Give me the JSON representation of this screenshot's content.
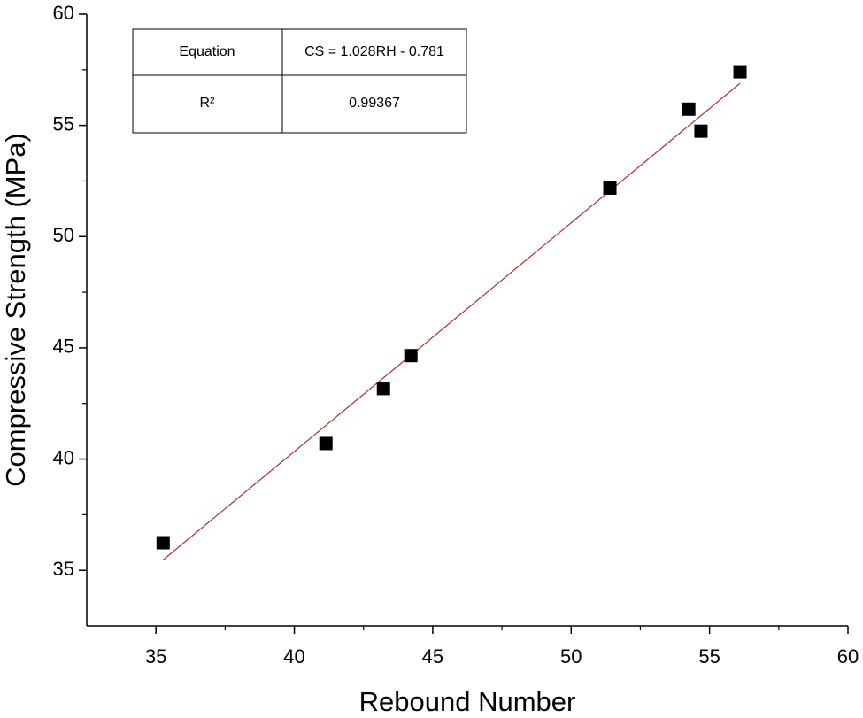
{
  "chart_data": {
    "type": "scatter",
    "x_label": "Rebound Number",
    "y_label": "Compressive Strength (MPa)",
    "x": [
      35.26,
      41.14,
      43.22,
      44.21,
      51.4,
      54.25,
      54.69,
      56.1
    ],
    "series": [
      {
        "color": "#000000",
        "values": [
          36.24,
          40.7,
          43.17,
          44.65,
          52.18,
          55.73,
          54.74,
          57.41
        ]
      }
    ],
    "fit_line": {
      "color": "#b03030",
      "x": [
        35.26,
        56.1
      ],
      "y": [
        35.47,
        56.89
      ]
    },
    "xlim": [
      32.5,
      60
    ],
    "ylim": [
      32.5,
      60
    ],
    "xticks": [
      35,
      40,
      45,
      50,
      55,
      60
    ],
    "yticks": [
      35,
      40,
      45,
      50,
      55,
      60
    ],
    "xminorticks": [
      37.5,
      42.5,
      47.5,
      52.5,
      57.5
    ],
    "yminorticks": [
      37.5,
      42.5,
      47.5,
      52.5,
      57.5
    ],
    "table": {
      "rows": [
        [
          "Equation",
          "CS = 1.028RH - 0.781"
        ],
        [
          "R²",
          "0.99367"
        ]
      ]
    }
  }
}
